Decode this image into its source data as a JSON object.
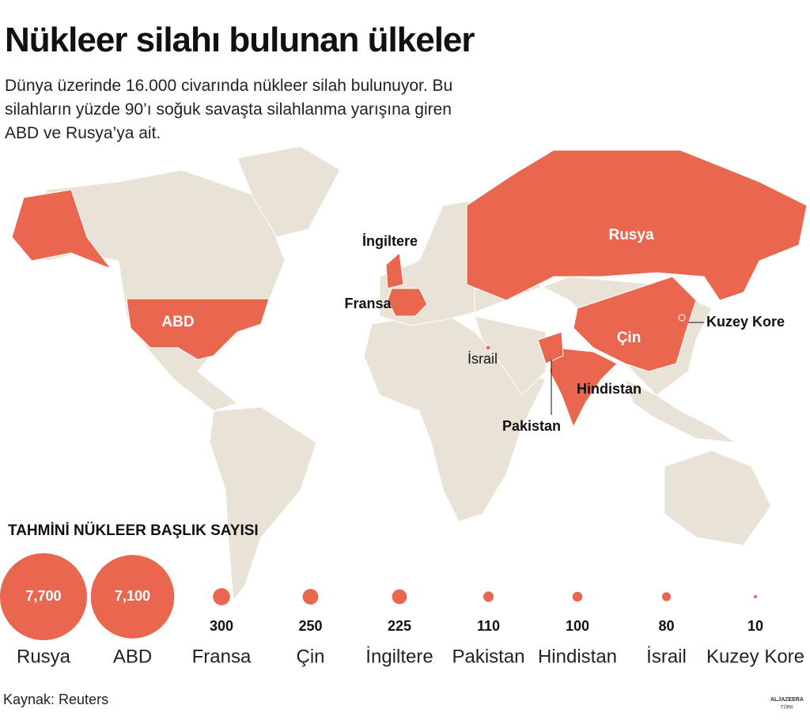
{
  "header": {
    "title": "Nükleer silahı bulunan ülkeler",
    "subtitle": "Dünya üzerinde 16.000 civarında nükleer silah bulunuyor. Bu silahların yüzde 90’ı soğuk savaşta silahlanma yarışına giren ABD ve Rusya’ya ait."
  },
  "map": {
    "labels": [
      "Rusya",
      "ABD",
      "Çin",
      "İngiltere",
      "Fransa",
      "Kuzey Kore",
      "İsrail",
      "Hindistan",
      "Pakistan"
    ]
  },
  "chart_data": {
    "type": "proportional-circles",
    "title": "TAHMİNİ NÜKLEER BAŞLIK SAYISI",
    "categories": [
      "Rusya",
      "ABD",
      "Fransa",
      "Çin",
      "İngiltere",
      "Pakistan",
      "Hindistan",
      "İsrail",
      "Kuzey Kore"
    ],
    "values": [
      7700,
      7100,
      300,
      250,
      225,
      110,
      100,
      80,
      10
    ],
    "value_labels": [
      "7,700",
      "7,100",
      "300",
      "250",
      "225",
      "110",
      "100",
      "80",
      "10"
    ],
    "color": "#e8674e"
  },
  "footer": {
    "source": "Kaynak: Reuters",
    "logo": [
      "ALJAZEERA",
      "TÜRK"
    ]
  }
}
